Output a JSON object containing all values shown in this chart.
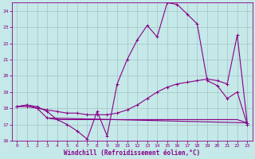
{
  "xlabel": "Windchill (Refroidissement éolien,°C)",
  "bg_color": "#c5e8e8",
  "line_color": "#880088",
  "grid_color": "#9fbaba",
  "ylim": [
    16,
    24.5
  ],
  "xlim": [
    -0.5,
    23.5
  ],
  "yticks": [
    16,
    17,
    18,
    19,
    20,
    21,
    22,
    23,
    24
  ],
  "xticks": [
    0,
    1,
    2,
    3,
    4,
    5,
    6,
    7,
    8,
    9,
    10,
    11,
    12,
    13,
    14,
    15,
    16,
    17,
    18,
    19,
    20,
    21,
    22,
    23
  ],
  "line1_x": [
    0,
    1,
    2,
    3,
    4,
    5,
    6,
    7,
    8,
    9,
    10,
    11,
    12,
    13,
    14,
    15,
    16,
    17,
    18,
    19,
    20,
    21,
    22,
    23
  ],
  "line1_y": [
    18.1,
    18.2,
    18.1,
    17.8,
    17.3,
    17.0,
    16.6,
    16.1,
    17.8,
    16.3,
    19.5,
    21.0,
    22.2,
    23.1,
    22.4,
    24.5,
    24.4,
    23.8,
    23.2,
    19.7,
    19.4,
    18.6,
    19.0,
    17.0
  ],
  "line2_x": [
    0,
    1,
    2,
    3,
    4,
    5,
    6,
    7,
    8,
    9,
    10,
    11,
    12,
    13,
    14,
    15,
    16,
    17,
    18,
    19,
    20,
    21,
    22,
    23
  ],
  "line2_y": [
    18.1,
    18.1,
    18.0,
    17.9,
    17.8,
    17.7,
    17.7,
    17.6,
    17.6,
    17.6,
    17.7,
    17.9,
    18.2,
    18.6,
    19.0,
    19.3,
    19.5,
    19.6,
    19.7,
    19.8,
    19.7,
    19.5,
    22.5,
    17.1
  ],
  "line3_x": [
    0,
    1,
    2,
    3,
    23
  ],
  "line3_y": [
    18.1,
    18.2,
    18.0,
    17.4,
    17.1
  ],
  "line4_x": [
    3,
    4,
    5,
    6,
    7,
    8,
    9,
    10,
    11,
    12,
    13,
    14,
    15,
    16,
    17,
    18,
    19,
    20,
    21,
    22,
    23
  ],
  "line4_y": [
    17.4,
    17.3,
    17.3,
    17.3,
    17.3,
    17.3,
    17.3,
    17.3,
    17.3,
    17.3,
    17.3,
    17.3,
    17.3,
    17.3,
    17.3,
    17.3,
    17.3,
    17.3,
    17.3,
    17.3,
    17.1
  ]
}
